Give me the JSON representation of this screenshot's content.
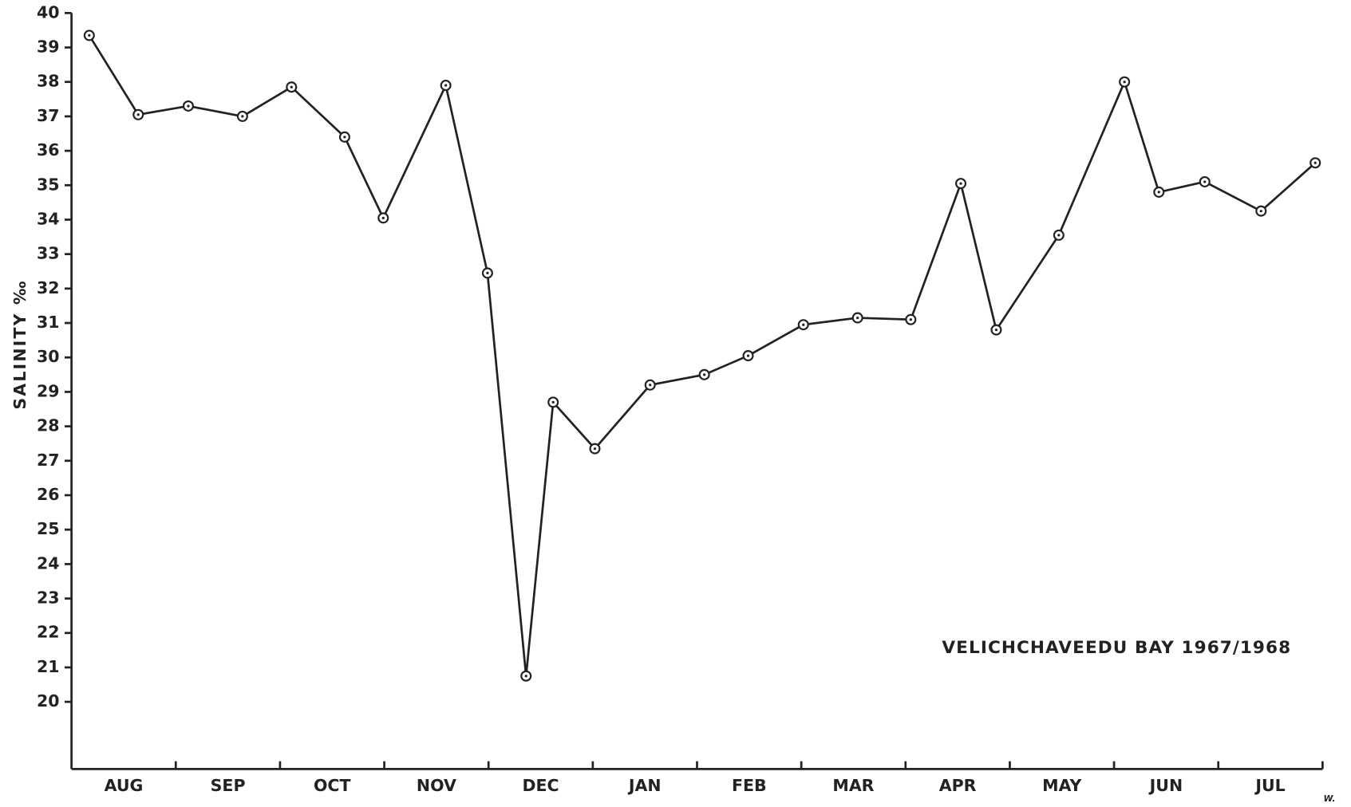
{
  "chart_data": {
    "type": "line",
    "ylabel": "SALINITY ‰",
    "annotation": "VELICHCHAVEEDU BAY 1967/1968",
    "signature": "W.",
    "categories": [
      "AUG",
      "SEP",
      "OCT",
      "NOV",
      "DEC",
      "JAN",
      "FEB",
      "MAR",
      "APR",
      "MAY",
      "JUN",
      "JUL"
    ],
    "xlim": [
      0,
      12
    ],
    "xticks": [
      1,
      2,
      3,
      4,
      5,
      6,
      7,
      8,
      9,
      10,
      11,
      12
    ],
    "ylim": [
      18.05,
      40
    ],
    "yticks": [
      20,
      21,
      22,
      23,
      24,
      25,
      26,
      27,
      28,
      29,
      30,
      31,
      32,
      33,
      34,
      35,
      36,
      37,
      38,
      39,
      40
    ],
    "series": [
      {
        "color": "#222222",
        "x": [
          0.17,
          0.64,
          1.12,
          1.64,
          2.11,
          2.62,
          2.99,
          3.59,
          3.99,
          4.36,
          4.62,
          5.02,
          5.55,
          6.07,
          6.49,
          7.02,
          7.54,
          8.05,
          8.53,
          8.87,
          9.47,
          10.1,
          10.43,
          10.87,
          11.41,
          11.93
        ],
        "values": [
          39.35,
          37.05,
          37.3,
          37.0,
          37.85,
          36.4,
          34.05,
          37.9,
          32.45,
          20.75,
          28.7,
          27.35,
          29.2,
          29.5,
          30.05,
          30.95,
          31.15,
          31.1,
          35.05,
          30.8,
          33.55,
          38.0,
          34.8,
          35.1,
          34.25,
          35.65
        ]
      }
    ]
  }
}
